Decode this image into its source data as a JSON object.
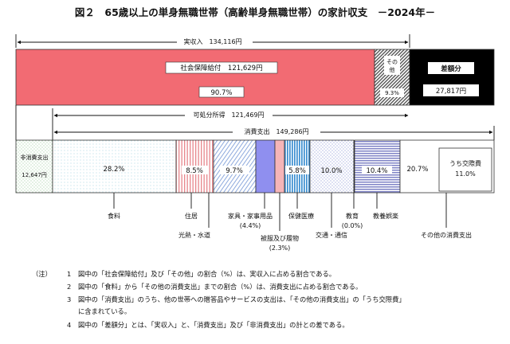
{
  "title": "図２　65歳以上の単身無職世帯（高齢単身無職世帯）の家計収支　－2024年－",
  "chart_data": {
    "type": "bar",
    "title": "図２　65歳以上の単身無職世帯（高齢単身無職世帯）の家計収支　－2024年－",
    "income": {
      "label": "実収入　134,116円",
      "value": 134116,
      "segments": [
        {
          "name": "社会保障給付",
          "label": "社会保障給付　121,629円",
          "value": 121629,
          "pct_label": "90.7%"
        },
        {
          "name": "その他",
          "label1": "その",
          "label2": "他",
          "pct_label": "9.3%"
        }
      ]
    },
    "deficit": {
      "label": "差額分",
      "value": 27817,
      "value_label": "27,817円"
    },
    "disposable_income": {
      "label": "可処分所得　121,469円",
      "value": 121469
    },
    "consumption": {
      "label": "消費支出　149,286円",
      "value": 149286,
      "segments": [
        {
          "name": "食料",
          "pct": 28.2,
          "pct_label": "28.2%"
        },
        {
          "name": "住居",
          "pct": 8.5,
          "pct_label": "8.5%"
        },
        {
          "name": "光熱・水道",
          "pct": 9.7,
          "pct_label": "9.7%"
        },
        {
          "name": "家具・家事用品",
          "pct": 4.4,
          "pct_label": "(4.4%)"
        },
        {
          "name": "被服及び履物",
          "pct": 2.3,
          "pct_label": "(2.3%)"
        },
        {
          "name": "保健医療",
          "pct": 5.8,
          "pct_label": "5.8%"
        },
        {
          "name": "交通・通信",
          "pct": 10.0,
          "pct_label": "10.0%"
        },
        {
          "name": "教育",
          "pct": 0.0,
          "pct_label": "(0.0%)"
        },
        {
          "name": "教養娯楽",
          "pct": 10.4,
          "pct_label": "10.4%"
        },
        {
          "name": "その他の消費支出",
          "pct": 20.7,
          "pct_label": "20.7%"
        }
      ],
      "sub_segment": {
        "name": "うち交際費",
        "pct": 11.0,
        "pct_label": "11.0%"
      }
    },
    "non_consumption": {
      "label1": "非消費支出",
      "value": 12647,
      "value_label": "12,647円"
    }
  },
  "notes": {
    "head": "（注）",
    "items": [
      {
        "num": "1",
        "text": "図中の「社会保障給付」及び「その他」の割合（%）は、実収入に占める割合である。"
      },
      {
        "num": "2",
        "text": "図中の「食料」から「その他の消費支出」までの割合（%）は、消費支出に占める割合である。"
      },
      {
        "num": "3",
        "text": "図中の「消費支出」のうち、他の世帯への贈答品やサービスの支出は、「その他の消費支出」の「うち交際費」"
      },
      {
        "num": "",
        "text": "に含まれている。"
      },
      {
        "num": "4",
        "text": "図中の「差額分」とは、「実収入」と、「消費支出」及び「非消費支出」の計との差である。"
      }
    ]
  },
  "colors": {
    "social_security": "#f26b73",
    "deficit": "#000000",
    "food_dots": "#7fc3d8",
    "housing_stripes": "#e7868c",
    "utilities_stripes": "#8da9dd",
    "furniture": "#8f8fef",
    "clothing": "#f5b5b8",
    "health": "#3c8fd1",
    "transport_dots": "#8b97d6",
    "recreation": "#7f83c6",
    "non_consumption": "#7dbb7d"
  }
}
